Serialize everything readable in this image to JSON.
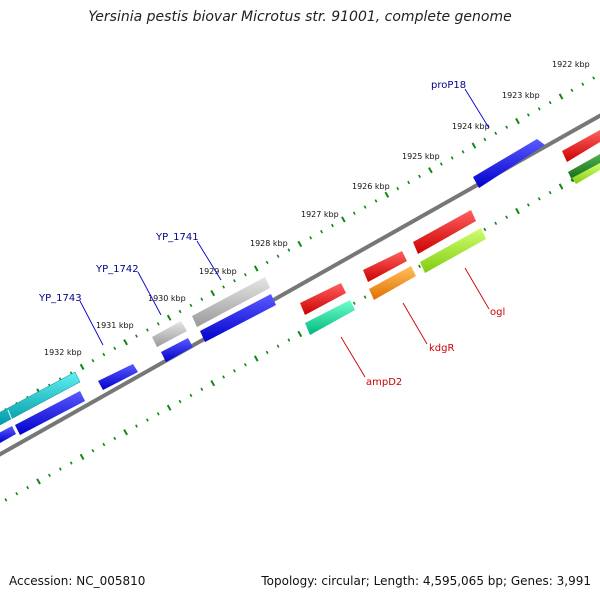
{
  "title": "Yersinia pestis biovar Microtus str. 91001, complete genome",
  "footer": {
    "accession": "Accession: NC_005810",
    "summary": "Topology: circular; Length: 4,595,065 bp; Genes: 3,991"
  },
  "ruler_labels": [
    "1922 kbp",
    "1923 kbp",
    "1924 kbp",
    "1925 kbp",
    "1926 kbp",
    "1927 kbp",
    "1928 kbp",
    "1929 kbp",
    "1930 kbp",
    "1931 kbp",
    "1932 kbp"
  ],
  "gene_labels": {
    "proP18": "proP18",
    "yp1741": "YP_1741",
    "yp1742": "YP_1742",
    "yp1743": "YP_1743",
    "ampD2": "ampD2",
    "kdgR": "kdgR",
    "ogl": "ogl"
  },
  "colors": {
    "blue": "#0000ee",
    "red": "#ee0000",
    "gray": "#bbbbbb",
    "cyan": "#00c0c8",
    "teal": "#00e0a0",
    "orange": "#ff9000",
    "lime": "#a0ee30",
    "darkgreen": "#228b22",
    "backbone": "#777777",
    "tick": "#118811"
  }
}
